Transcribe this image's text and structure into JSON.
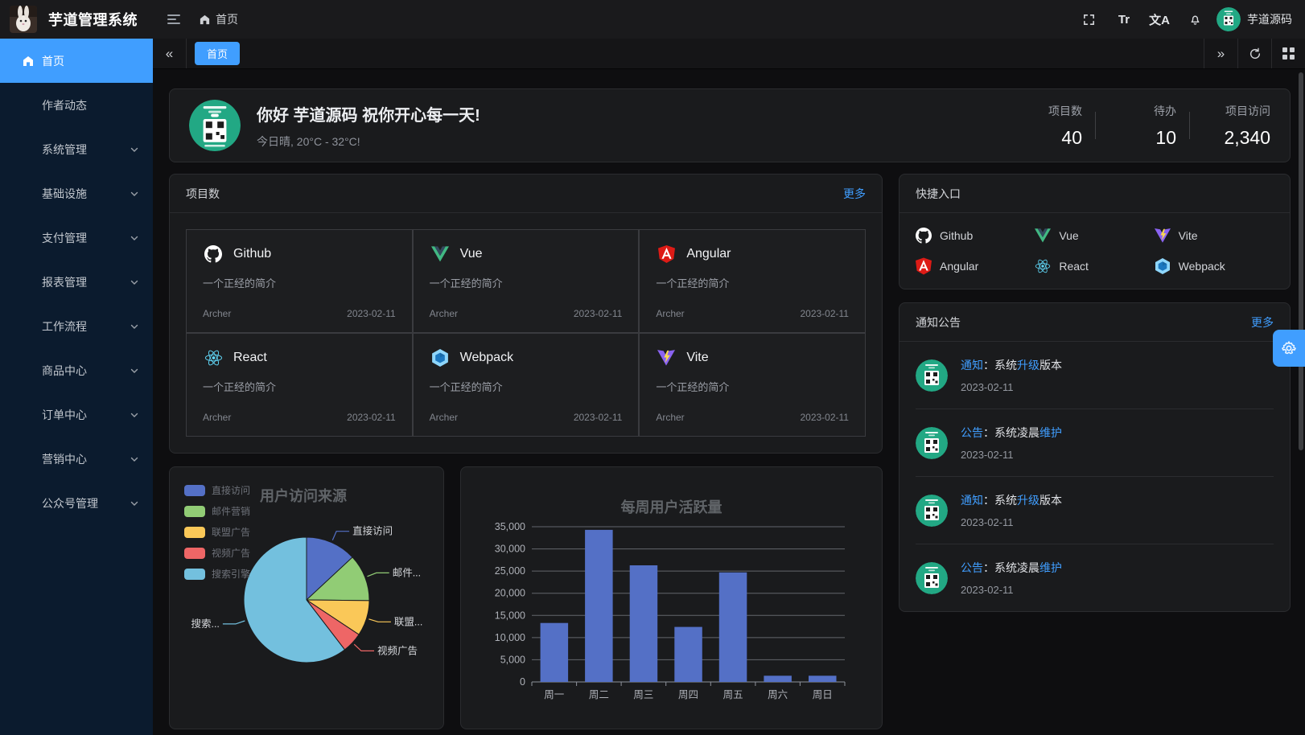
{
  "header": {
    "app_title": "芋道管理系统",
    "breadcrumb_home": "首页",
    "font_size_glyph": "Tr",
    "language_glyph": "文A",
    "user_name": "芋道源码"
  },
  "sidebar": {
    "items": [
      {
        "label": "首页",
        "icon": "home",
        "active": true,
        "expandable": false
      },
      {
        "label": "作者动态",
        "active": false,
        "expandable": false
      },
      {
        "label": "系统管理",
        "active": false,
        "expandable": true
      },
      {
        "label": "基础设施",
        "active": false,
        "expandable": true
      },
      {
        "label": "支付管理",
        "active": false,
        "expandable": true
      },
      {
        "label": "报表管理",
        "active": false,
        "expandable": true
      },
      {
        "label": "工作流程",
        "active": false,
        "expandable": true
      },
      {
        "label": "商品中心",
        "active": false,
        "expandable": true
      },
      {
        "label": "订单中心",
        "active": false,
        "expandable": true
      },
      {
        "label": "营销中心",
        "active": false,
        "expandable": true
      },
      {
        "label": "公众号管理",
        "active": false,
        "expandable": true
      }
    ]
  },
  "tabs": {
    "active_tab": "首页"
  },
  "greeting": {
    "title": "你好 芋道源码 祝你开心每一天!",
    "subtitle": "今日晴, 20°C - 32°C!",
    "stats": [
      {
        "label": "项目数",
        "value": "40"
      },
      {
        "label": "待办",
        "value": "10"
      },
      {
        "label": "项目访问",
        "value": "2,340"
      }
    ]
  },
  "projects": {
    "title": "项目数",
    "more": "更多",
    "items": [
      {
        "name": "Github",
        "icon": "github",
        "desc": "一个正经的简介",
        "author": "Archer",
        "date": "2023-02-11"
      },
      {
        "name": "Vue",
        "icon": "vue",
        "desc": "一个正经的简介",
        "author": "Archer",
        "date": "2023-02-11"
      },
      {
        "name": "Angular",
        "icon": "angular",
        "desc": "一个正经的简介",
        "author": "Archer",
        "date": "2023-02-11"
      },
      {
        "name": "React",
        "icon": "react",
        "desc": "一个正经的简介",
        "author": "Archer",
        "date": "2023-02-11"
      },
      {
        "name": "Webpack",
        "icon": "webpack",
        "desc": "一个正经的简介",
        "author": "Archer",
        "date": "2023-02-11"
      },
      {
        "name": "Vite",
        "icon": "vite",
        "desc": "一个正经的简介",
        "author": "Archer",
        "date": "2023-02-11"
      }
    ]
  },
  "shortcuts": {
    "title": "快捷入口",
    "items": [
      {
        "name": "Github",
        "icon": "github"
      },
      {
        "name": "Vue",
        "icon": "vue"
      },
      {
        "name": "Vite",
        "icon": "vite"
      },
      {
        "name": "Angular",
        "icon": "angular"
      },
      {
        "name": "React",
        "icon": "react"
      },
      {
        "name": "Webpack",
        "icon": "webpack"
      }
    ]
  },
  "notices": {
    "title": "通知公告",
    "more": "更多",
    "items": [
      {
        "parts": [
          {
            "t": "通知",
            "hl": true
          },
          {
            "t": "：系统",
            "hl": false
          },
          {
            "t": "升级",
            "hl": true
          },
          {
            "t": "版本",
            "hl": false
          }
        ],
        "date": "2023-02-11"
      },
      {
        "parts": [
          {
            "t": "公告",
            "hl": true
          },
          {
            "t": "：系统凌晨",
            "hl": false
          },
          {
            "t": "维护",
            "hl": true
          }
        ],
        "date": "2023-02-11"
      },
      {
        "parts": [
          {
            "t": "通知",
            "hl": true
          },
          {
            "t": "：系统",
            "hl": false
          },
          {
            "t": "升级",
            "hl": true
          },
          {
            "t": "版本",
            "hl": false
          }
        ],
        "date": "2023-02-11"
      },
      {
        "parts": [
          {
            "t": "公告",
            "hl": true
          },
          {
            "t": "：系统凌晨",
            "hl": false
          },
          {
            "t": "维护",
            "hl": true
          }
        ],
        "date": "2023-02-11"
      }
    ]
  },
  "chart_data": [
    {
      "type": "pie",
      "title": "用户访问来源",
      "legend_position": "left",
      "series": [
        {
          "name": "直接访问",
          "value": 335,
          "percent": 13.1,
          "color": "#5470c6",
          "callout": "直接访问"
        },
        {
          "name": "邮件营销",
          "value": 310,
          "percent": 12.1,
          "color": "#91cc75",
          "callout": "邮件..."
        },
        {
          "name": "联盟广告",
          "value": 234,
          "percent": 9.1,
          "color": "#fac858",
          "callout": "联盟..."
        },
        {
          "name": "视频广告",
          "value": 135,
          "percent": 5.3,
          "color": "#ee6666",
          "callout": "视频广告"
        },
        {
          "name": "搜索引擎",
          "value": 1548,
          "percent": 60.4,
          "color": "#73c0de",
          "callout": "搜索..."
        }
      ]
    },
    {
      "type": "bar",
      "title": "每周用户活跃量",
      "categories": [
        "周一",
        "周二",
        "周三",
        "周四",
        "周五",
        "周六",
        "周日"
      ],
      "values": [
        13300,
        34300,
        26300,
        12400,
        24700,
        1400,
        1400
      ],
      "bar_color": "#5470c6",
      "ylim": [
        0,
        35000
      ],
      "yticks": [
        0,
        5000,
        10000,
        15000,
        20000,
        25000,
        30000,
        35000
      ],
      "ytick_labels": [
        "0",
        "5,000",
        "10,000",
        "15,000",
        "20,000",
        "25,000",
        "30,000",
        "35,000"
      ],
      "grid": true
    }
  ],
  "colors": {
    "accent": "#409eff",
    "sidebar_bg": "#0b1b2e",
    "card_bg": "#1a1b1d",
    "page_bg": "#0e0e10",
    "notice_avatar_green": "#22a884"
  }
}
